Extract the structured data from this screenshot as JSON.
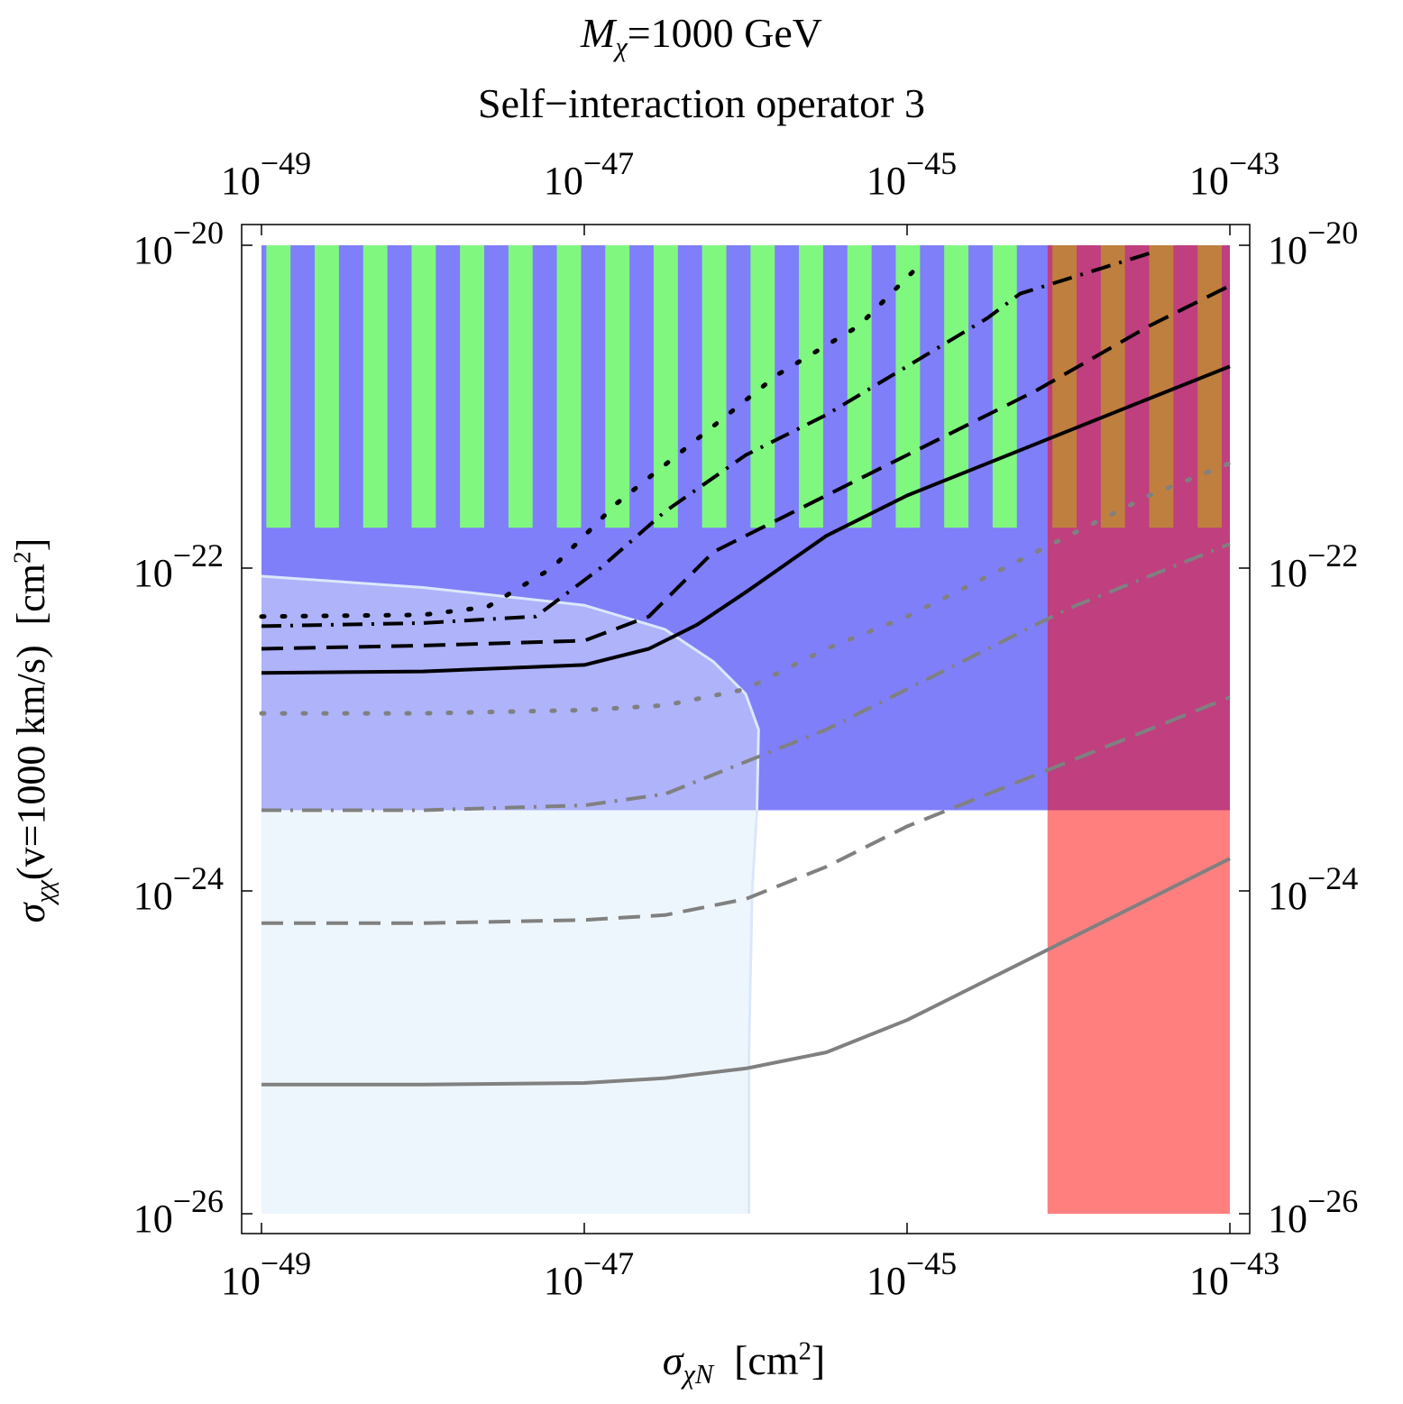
{
  "figure": {
    "title_line1_text": "=1000 GeV",
    "title_line1_mass_symbol": "M",
    "title_line1_mass_sub": "χ",
    "title_line2": "Self−interaction operator 3",
    "xlabel_symbol": "σ",
    "xlabel_sub": "χN",
    "xlabel_unit": "[cm",
    "xlabel_unit_exp": "2",
    "xlabel_unit_close": "]",
    "ylabel_symbol": "σ",
    "ylabel_sub": "χχ",
    "ylabel_cond": "(v=1000 km/s)",
    "ylabel_unit": "[cm",
    "ylabel_unit_exp": "2",
    "ylabel_unit_close": "]"
  },
  "chart_data": {
    "type": "line",
    "x_scale": "log",
    "y_scale": "log",
    "xlim_log10": [
      -49,
      -43
    ],
    "ylim_log10": [
      -26,
      -20
    ],
    "x_ticks": [
      {
        "log10": -49,
        "base": "10",
        "exp": "−49"
      },
      {
        "log10": -47,
        "base": "10",
        "exp": "−47"
      },
      {
        "log10": -45,
        "base": "10",
        "exp": "−45"
      },
      {
        "log10": -43,
        "base": "10",
        "exp": "−43"
      }
    ],
    "y_ticks": [
      {
        "log10": -26,
        "base": "10",
        "exp": "−26"
      },
      {
        "log10": -24,
        "base": "10",
        "exp": "−24"
      },
      {
        "log10": -22,
        "base": "10",
        "exp": "−22"
      },
      {
        "log10": -20,
        "base": "10",
        "exp": "−20"
      }
    ],
    "colors": {
      "blue_region": "#7f7ff9",
      "green_stripes": "#80f880",
      "magenta_region": "#bf3f7f",
      "orange_stripes": "#bf7f3f",
      "red_region": "#ff7f7f",
      "light_blue_region": "#eef6fd",
      "lavender_region": "#aeb3fa",
      "contour_edge": "#dbe8fb",
      "black_curves": "#000000",
      "gray_curves": "#808080"
    },
    "regions": [
      {
        "name": "blue-excluded-region",
        "x_log10": [
          -49,
          -43
        ],
        "y_log10": [
          -23.5,
          -20
        ],
        "color": "blue_region"
      },
      {
        "name": "red-excluded-region",
        "x_log10": [
          -44.13,
          -43
        ],
        "y_log10": [
          -26,
          -20
        ],
        "color": "red_region"
      },
      {
        "name": "overlap-region",
        "x_log10": [
          -44.13,
          -43
        ],
        "y_log10": [
          -23.5,
          -20
        ],
        "color": "magenta_region"
      },
      {
        "name": "green-striped-band",
        "x_log10": [
          -49,
          -44.13
        ],
        "y_log10": [
          -21.75,
          -20
        ],
        "color": "green_stripes",
        "stripe_period_log10": 0.3,
        "stripe_width_log10": 0.15
      },
      {
        "name": "orange-striped-band",
        "x_log10": [
          -44.13,
          -43
        ],
        "y_log10": [
          -21.75,
          -20
        ],
        "color": "orange_stripes",
        "stripe_period_log10": 0.3,
        "stripe_width_log10": 0.15
      }
    ],
    "contour_region": {
      "name": "allowed-contour",
      "boundary": [
        [
          -49,
          -22.05
        ],
        [
          -48.0,
          -22.12
        ],
        [
          -47.0,
          -22.23
        ],
        [
          -46.5,
          -22.38
        ],
        [
          -46.2,
          -22.58
        ],
        [
          -46.0,
          -22.78
        ],
        [
          -45.92,
          -23.0
        ],
        [
          -45.93,
          -23.5
        ],
        [
          -45.96,
          -24.0
        ],
        [
          -45.98,
          -25.0
        ],
        [
          -45.98,
          -26.0
        ],
        [
          -49,
          -26.0
        ]
      ],
      "split_y_log10": -23.5
    },
    "series": [
      {
        "name": "black-dotted",
        "color": "black_curves",
        "dash": "3,20",
        "points": [
          [
            -49,
            -22.3
          ],
          [
            -48.0,
            -22.29
          ],
          [
            -47.6,
            -22.24
          ],
          [
            -47.2,
            -22.0
          ],
          [
            -46.8,
            -21.6
          ],
          [
            -46.3,
            -21.2
          ],
          [
            -45.8,
            -20.8
          ],
          [
            -45.3,
            -20.5
          ],
          [
            -44.9,
            -20.1
          ]
        ]
      },
      {
        "name": "black-dash-dot",
        "color": "black_curves",
        "dash": "22,10,3,10",
        "points": [
          [
            -49,
            -22.36
          ],
          [
            -48.0,
            -22.34
          ],
          [
            -47.3,
            -22.3
          ],
          [
            -46.9,
            -22.0
          ],
          [
            -46.5,
            -21.65
          ],
          [
            -46.0,
            -21.3
          ],
          [
            -45.5,
            -21.05
          ],
          [
            -45.0,
            -20.75
          ],
          [
            -44.5,
            -20.45
          ],
          [
            -44.3,
            -20.3
          ],
          [
            -43.5,
            -20.05
          ]
        ]
      },
      {
        "name": "black-dashed",
        "color": "black_curves",
        "dash": "24,12",
        "points": [
          [
            -49,
            -22.5
          ],
          [
            -48.0,
            -22.48
          ],
          [
            -47.0,
            -22.45
          ],
          [
            -46.6,
            -22.3
          ],
          [
            -46.2,
            -21.9
          ],
          [
            -45.8,
            -21.7
          ],
          [
            -45.3,
            -21.45
          ],
          [
            -44.8,
            -21.2
          ],
          [
            -44.2,
            -20.9
          ],
          [
            -43.5,
            -20.5
          ],
          [
            -43.0,
            -20.25
          ]
        ]
      },
      {
        "name": "black-solid",
        "color": "black_curves",
        "dash": "",
        "points": [
          [
            -49,
            -22.65
          ],
          [
            -48.0,
            -22.64
          ],
          [
            -47.0,
            -22.6
          ],
          [
            -46.6,
            -22.5
          ],
          [
            -46.3,
            -22.35
          ],
          [
            -46.0,
            -22.15
          ],
          [
            -45.5,
            -21.8
          ],
          [
            -45.0,
            -21.55
          ],
          [
            -44.5,
            -21.35
          ],
          [
            -44.0,
            -21.15
          ],
          [
            -43.5,
            -20.95
          ],
          [
            -43.0,
            -20.75
          ]
        ]
      },
      {
        "name": "gray-dotted",
        "color": "gray_curves",
        "dash": "3,20",
        "points": [
          [
            -49,
            -22.9
          ],
          [
            -48.0,
            -22.9
          ],
          [
            -47.0,
            -22.88
          ],
          [
            -46.5,
            -22.85
          ],
          [
            -46.0,
            -22.75
          ],
          [
            -45.5,
            -22.5
          ],
          [
            -45.0,
            -22.3
          ],
          [
            -44.5,
            -22.05
          ],
          [
            -44.0,
            -21.8
          ],
          [
            -43.5,
            -21.55
          ],
          [
            -43.0,
            -21.35
          ]
        ]
      },
      {
        "name": "gray-dash-dot",
        "color": "gray_curves",
        "dash": "22,10,3,10",
        "points": [
          [
            -49,
            -23.5
          ],
          [
            -48.0,
            -23.5
          ],
          [
            -47.0,
            -23.47
          ],
          [
            -46.5,
            -23.4
          ],
          [
            -46.0,
            -23.2
          ],
          [
            -45.5,
            -23.0
          ],
          [
            -45.0,
            -22.75
          ],
          [
            -44.5,
            -22.5
          ],
          [
            -44.0,
            -22.25
          ],
          [
            -43.5,
            -22.05
          ],
          [
            -43.0,
            -21.85
          ]
        ]
      },
      {
        "name": "gray-dashed",
        "color": "gray_curves",
        "dash": "24,12",
        "points": [
          [
            -49,
            -24.2
          ],
          [
            -48.0,
            -24.2
          ],
          [
            -47.0,
            -24.18
          ],
          [
            -46.5,
            -24.15
          ],
          [
            -46.0,
            -24.05
          ],
          [
            -45.5,
            -23.85
          ],
          [
            -45.0,
            -23.6
          ],
          [
            -44.5,
            -23.4
          ],
          [
            -44.0,
            -23.2
          ],
          [
            -43.5,
            -23.0
          ],
          [
            -43.0,
            -22.8
          ]
        ]
      },
      {
        "name": "gray-solid",
        "color": "gray_curves",
        "dash": "",
        "points": [
          [
            -49,
            -25.2
          ],
          [
            -48.0,
            -25.2
          ],
          [
            -47.0,
            -25.19
          ],
          [
            -46.5,
            -25.16
          ],
          [
            -46.0,
            -25.1
          ],
          [
            -45.5,
            -25.0
          ],
          [
            -45.0,
            -24.8
          ],
          [
            -44.5,
            -24.55
          ],
          [
            -44.0,
            -24.3
          ],
          [
            -43.5,
            -24.05
          ],
          [
            -43.0,
            -23.8
          ]
        ]
      }
    ]
  }
}
